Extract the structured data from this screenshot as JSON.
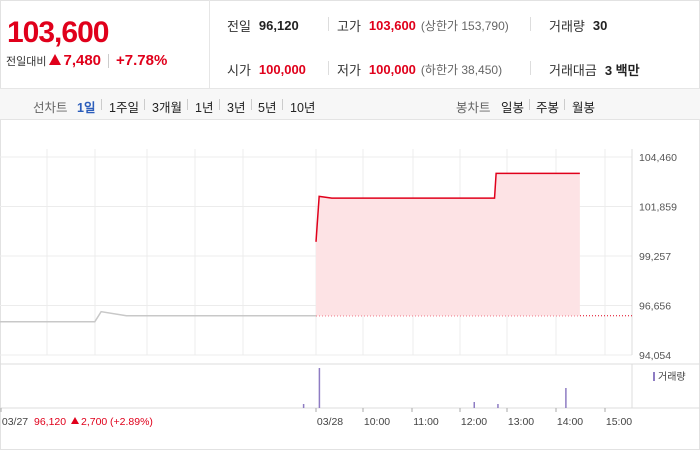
{
  "summary": {
    "price": "103,600",
    "change_label": "전일대비",
    "change_value": "7,480",
    "change_percent": "+7.78%",
    "prev_close_label": "전일",
    "prev_close": "96,120",
    "high_label": "고가",
    "high": "103,600",
    "upper_limit": "(상한가 153,790)",
    "volume_label": "거래량",
    "volume": "30",
    "open_label": "시가",
    "open": "100,000",
    "low_label": "저가",
    "low": "100,000",
    "lower_limit": "(하한가 38,450)",
    "trade_value_label": "거래대금",
    "trade_value": "3 백만"
  },
  "toolbar": {
    "line_chart_label": "선차트",
    "periods": [
      "1일",
      "1주일",
      "3개월",
      "1년",
      "3년",
      "5년",
      "10년"
    ],
    "active_period": "1일",
    "candle_chart_label": "봉차트",
    "candle_periods": [
      "일봉",
      "주봉",
      "월봉"
    ]
  },
  "colors": {
    "up": "#e0001b",
    "active_tab": "#2b5dbb",
    "area_fill": "#fde3e5",
    "prev_line": "#c8c8c8",
    "volume_bar": "#8e7cc3"
  },
  "chart_data": {
    "type": "line",
    "y_ticks": [
      "104,460",
      "101,859",
      "99,257",
      "96,656",
      "94,054"
    ],
    "ylim": [
      94054,
      104460
    ],
    "x_labels": [
      "03/27",
      "03/28",
      "10:00",
      "11:00",
      "12:00",
      "13:00",
      "14:00",
      "15:00"
    ],
    "baseline": 96120,
    "series": [
      {
        "name": "03/27",
        "points": [
          [
            0,
            95800
          ],
          [
            0.3,
            95800
          ],
          [
            0.32,
            96330
          ],
          [
            0.4,
            96120
          ],
          [
            1,
            96120
          ]
        ]
      },
      {
        "name": "03/28",
        "points": [
          [
            1,
            100000
          ],
          [
            1.02,
            102390
          ],
          [
            1.1,
            102300
          ],
          [
            2.13,
            102300
          ],
          [
            2.14,
            103600
          ],
          [
            2.67,
            103600
          ]
        ]
      }
    ],
    "volume_legend": "거래량",
    "volume": [
      {
        "t": 0.96,
        "v": 0.1
      },
      {
        "t": 1.02,
        "v": 1.0
      },
      {
        "t": 2.0,
        "v": 0.15
      },
      {
        "t": 2.15,
        "v": 0.1
      },
      {
        "t": 2.58,
        "v": 0.5
      }
    ],
    "footer": {
      "prev_label": "03/27",
      "prev_close": "96,120",
      "prev_change": "2,700",
      "prev_percent": "(+2.89%)"
    }
  }
}
